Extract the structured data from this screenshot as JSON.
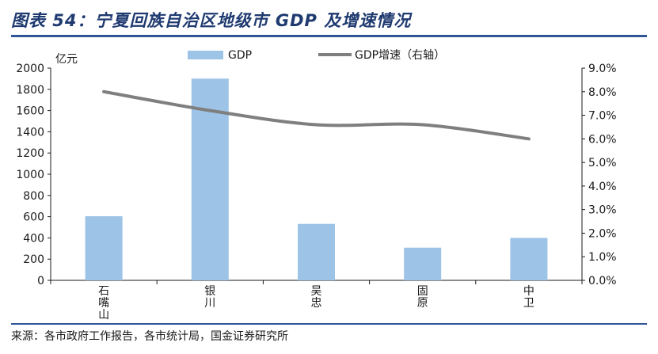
{
  "page": {
    "title": "图表 54：宁夏回族自治区地级市 GDP 及增速情况",
    "source": "来源：各市政府工作报告，各市统计局，国金证券研究所"
  },
  "chart_data": {
    "type": "bar",
    "categories": [
      "石\n嘴\n山",
      "银\n川",
      "吴\n忠",
      "固\n原",
      "中\n卫"
    ],
    "series": [
      {
        "name": "GDP",
        "type": "bar",
        "axis": "left",
        "color": "#9dc3e6",
        "values": [
          604,
          1901,
          532,
          308,
          400
        ]
      },
      {
        "name": "GDP增速（右轴）",
        "type": "line",
        "axis": "right",
        "color": "#7f7f7f",
        "values": [
          8.0,
          7.2,
          6.6,
          6.6,
          6.0
        ]
      }
    ],
    "ylabel_left": "亿元",
    "ylim_left": [
      0,
      2000
    ],
    "yticks_left": [
      "0",
      "200",
      "400",
      "600",
      "800",
      "1000",
      "1200",
      "1400",
      "1600",
      "1800",
      "2000"
    ],
    "ylim_right": [
      0,
      9
    ],
    "yticks_right": [
      "0.0%",
      "1.0%",
      "2.0%",
      "3.0%",
      "4.0%",
      "5.0%",
      "6.0%",
      "7.0%",
      "8.0%",
      "9.0%"
    ],
    "legend_position": "top",
    "grid": false
  }
}
